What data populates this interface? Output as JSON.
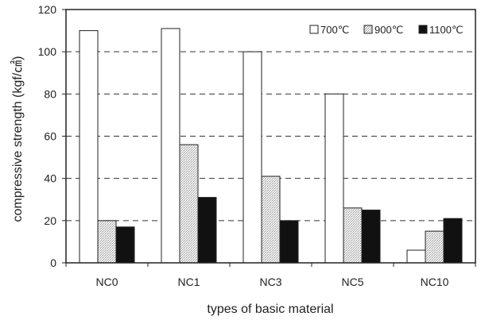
{
  "chart_data": {
    "type": "bar",
    "title": "",
    "xlabel": "types of basic material",
    "ylabel": "compressive strength (kgf/㎠)",
    "categories": [
      "NC0",
      "NC1",
      "NC3",
      "NC5",
      "NC10"
    ],
    "ylim": [
      0,
      120
    ],
    "yticks": [
      0,
      20,
      40,
      60,
      80,
      100,
      120
    ],
    "grid": "horizontal dashed",
    "legend_position": "top-right",
    "series": [
      {
        "name": "700℃",
        "values": [
          110,
          111,
          100,
          80,
          6
        ],
        "fill": "#ffffff",
        "pattern": "plain"
      },
      {
        "name": "900℃",
        "values": [
          20,
          56,
          41,
          26,
          15
        ],
        "fill": "#e6e6e6",
        "pattern": "dotted"
      },
      {
        "name": "1100℃",
        "values": [
          17,
          31,
          20,
          25,
          21
        ],
        "fill": "#111111",
        "pattern": "solid"
      }
    ]
  }
}
